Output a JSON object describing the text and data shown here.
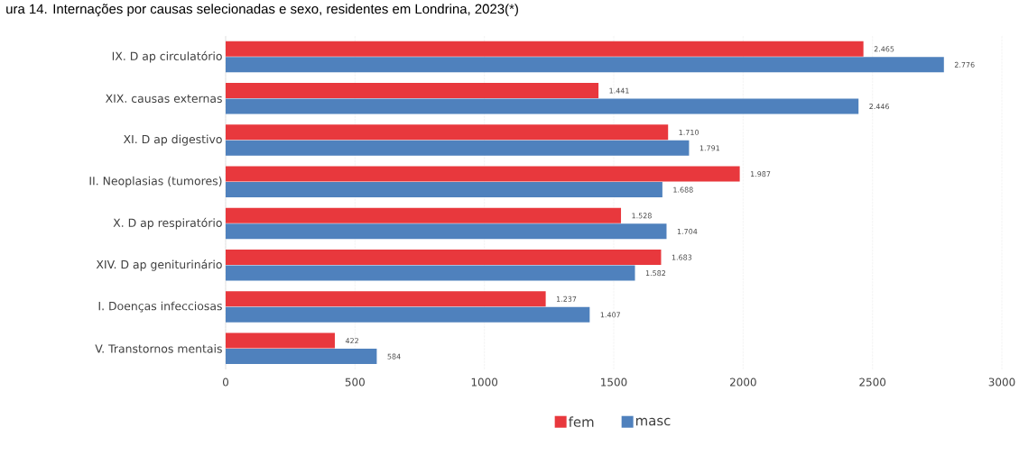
{
  "chart_data": {
    "type": "bar",
    "orientation": "horizontal",
    "title": "ura 14. Internações por causas selecionadas e sexo, residentes em Londrina, 2023(*)",
    "categories": [
      "IX.  D ap circulatório",
      "XIX. causas externas",
      "XI.  D ap digestivo",
      "II.  Neoplasias (tumores)",
      "X.   D ap respiratório",
      "XIV. D  ap geniturinário",
      "I.   Doenças infecciosas",
      "V.   Transtornos mentais"
    ],
    "series": [
      {
        "name": "fem",
        "color": "#e8383d",
        "values": [
          2465,
          1441,
          1710,
          1987,
          1528,
          1683,
          1237,
          422
        ],
        "value_labels": [
          "2.465",
          "1.441",
          "1.710",
          "1.987",
          "1.528",
          "1.683",
          "1.237",
          "422"
        ]
      },
      {
        "name": "masc",
        "color": "#4f81bd",
        "values": [
          2776,
          2446,
          1791,
          1688,
          1704,
          1582,
          1407,
          584
        ],
        "value_labels": [
          "2.776",
          "2.446",
          "1.791",
          "1.688",
          "1.704",
          "1.582",
          "1.407",
          "584"
        ]
      }
    ],
    "xlim": [
      0,
      3000
    ],
    "xticks": [
      0,
      500,
      1000,
      1500,
      2000,
      2500,
      3000
    ],
    "grid": "x",
    "legend": "bottom"
  }
}
